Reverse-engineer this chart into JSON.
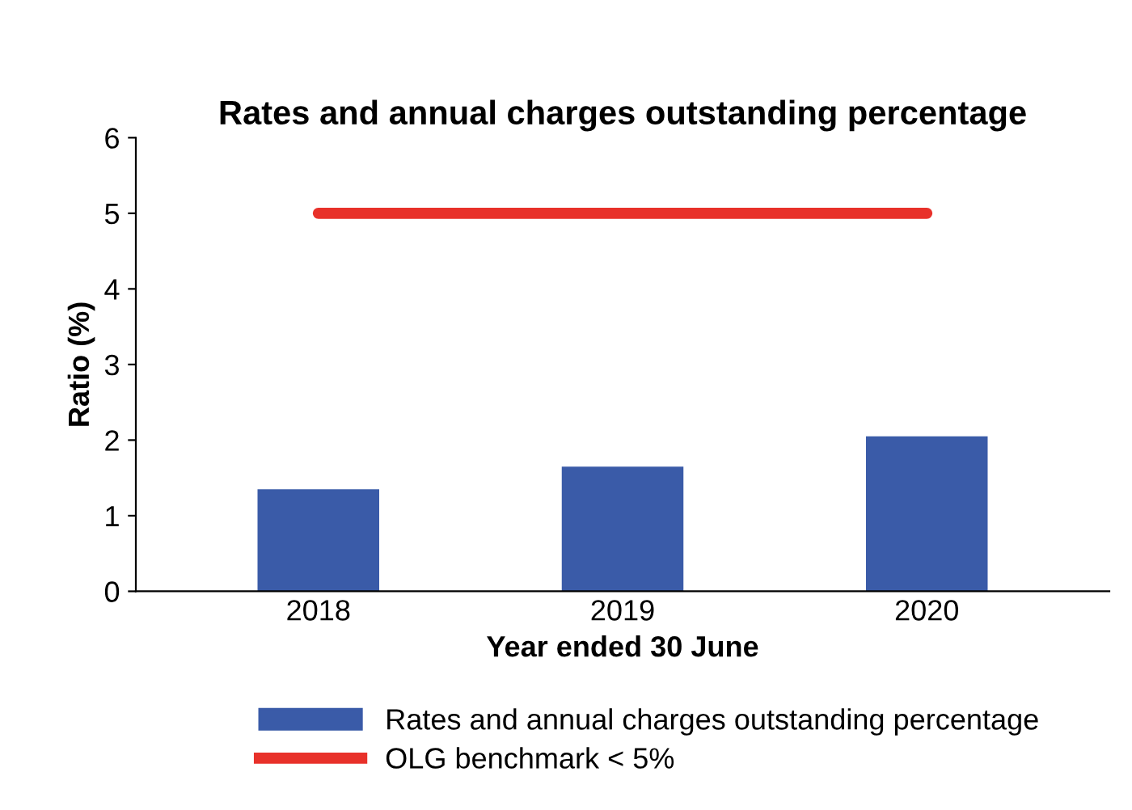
{
  "chart_data": {
    "type": "bar",
    "title": "Rates and annual charges outstanding percentage",
    "xlabel": "Year ended 30 June",
    "ylabel": "Ratio (%)",
    "categories": [
      "2018",
      "2019",
      "2020"
    ],
    "series": [
      {
        "name": "Rates and annual charges outstanding percentage",
        "color": "#3a5ba8",
        "values": [
          1.35,
          1.65,
          2.05
        ]
      },
      {
        "name": "OLG benchmark < 5%",
        "type": "line",
        "color": "#e8312a",
        "values": [
          5,
          5,
          5
        ]
      }
    ],
    "ylim": [
      0,
      6
    ],
    "yticks": [
      0,
      1,
      2,
      3,
      4,
      5,
      6
    ],
    "grid": false,
    "legend": "bottom"
  }
}
